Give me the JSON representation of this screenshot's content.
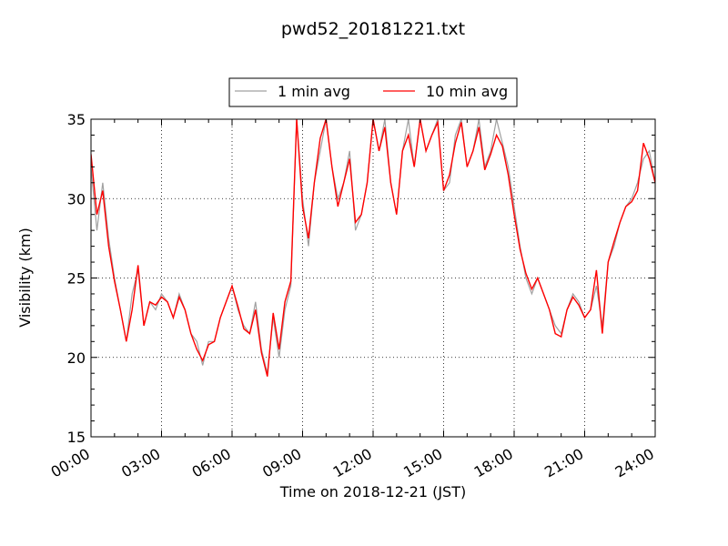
{
  "chart_data": {
    "type": "line",
    "title": "pwd52_20181221.txt",
    "xlabel": "Time on 2018-12-21 (JST)",
    "ylabel": "Visibility (km)",
    "xlim": [
      0,
      24
    ],
    "ylim": [
      15,
      35
    ],
    "x_ticks": [
      0,
      3,
      6,
      9,
      12,
      15,
      18,
      21,
      24
    ],
    "x_tick_labels": [
      "00:00",
      "03:00",
      "06:00",
      "09:00",
      "12:00",
      "15:00",
      "18:00",
      "21:00",
      "24:00"
    ],
    "y_ticks": [
      15,
      20,
      25,
      30,
      35
    ],
    "y_tick_labels": [
      "15",
      "20",
      "25",
      "30",
      "35"
    ],
    "grid": true,
    "legend_position": "top-center",
    "series": [
      {
        "name": "1 min avg",
        "color": "#a0a0a0",
        "x_hours": [
          0.0,
          0.25,
          0.5,
          0.75,
          1.0,
          1.25,
          1.5,
          1.75,
          2.0,
          2.25,
          2.5,
          2.75,
          3.0,
          3.25,
          3.5,
          3.75,
          4.0,
          4.25,
          4.5,
          4.75,
          5.0,
          5.25,
          5.5,
          5.75,
          6.0,
          6.25,
          6.5,
          6.75,
          7.0,
          7.25,
          7.5,
          7.75,
          8.0,
          8.25,
          8.5,
          8.75,
          9.0,
          9.25,
          9.5,
          9.75,
          10.0,
          10.25,
          10.5,
          10.75,
          11.0,
          11.25,
          11.5,
          11.75,
          12.0,
          12.25,
          12.5,
          12.75,
          13.0,
          13.25,
          13.5,
          13.75,
          14.0,
          14.25,
          14.5,
          14.75,
          15.0,
          15.25,
          15.5,
          15.75,
          16.0,
          16.25,
          16.5,
          16.75,
          17.0,
          17.25,
          17.5,
          17.75,
          18.0,
          18.25,
          18.5,
          18.75,
          19.0,
          19.25,
          19.5,
          19.75,
          20.0,
          20.25,
          20.5,
          20.75,
          21.0,
          21.25,
          21.5,
          21.75,
          22.0,
          22.25,
          22.5,
          22.75,
          23.0,
          23.25,
          23.5,
          23.75,
          24.0
        ],
        "values_km": [
          32.0,
          28.0,
          31.0,
          27.5,
          25.0,
          23.0,
          21.0,
          24.0,
          25.5,
          22.0,
          23.5,
          23.0,
          24.0,
          23.5,
          22.5,
          24.0,
          23.0,
          21.5,
          21.0,
          19.5,
          21.0,
          21.0,
          22.5,
          23.5,
          24.5,
          23.0,
          22.0,
          21.5,
          23.5,
          20.5,
          19.0,
          22.5,
          20.0,
          23.0,
          24.5,
          35.0,
          30.0,
          27.0,
          31.0,
          33.0,
          35.0,
          32.0,
          30.0,
          31.0,
          33.0,
          28.0,
          29.0,
          31.0,
          35.0,
          33.0,
          35.0,
          31.0,
          29.0,
          33.0,
          35.0,
          32.0,
          35.0,
          33.0,
          34.0,
          35.0,
          30.5,
          31.0,
          34.0,
          35.0,
          32.0,
          33.0,
          35.0,
          32.0,
          33.0,
          35.0,
          33.5,
          32.0,
          29.5,
          27.0,
          25.0,
          24.0,
          25.0,
          24.0,
          23.0,
          22.0,
          21.5,
          23.0,
          24.0,
          23.5,
          22.5,
          23.0,
          24.5,
          22.0,
          26.0,
          27.0,
          28.5,
          29.5,
          30.0,
          31.0,
          32.5,
          33.0,
          31.0
        ]
      },
      {
        "name": "10 min avg",
        "color": "#ff0000",
        "x_hours": [
          0.0,
          0.25,
          0.5,
          0.75,
          1.0,
          1.25,
          1.5,
          1.75,
          2.0,
          2.25,
          2.5,
          2.75,
          3.0,
          3.25,
          3.5,
          3.75,
          4.0,
          4.25,
          4.5,
          4.75,
          5.0,
          5.25,
          5.5,
          5.75,
          6.0,
          6.25,
          6.5,
          6.75,
          7.0,
          7.25,
          7.5,
          7.75,
          8.0,
          8.25,
          8.5,
          8.75,
          9.0,
          9.25,
          9.5,
          9.75,
          10.0,
          10.25,
          10.5,
          10.75,
          11.0,
          11.25,
          11.5,
          11.75,
          12.0,
          12.25,
          12.5,
          12.75,
          13.0,
          13.25,
          13.5,
          13.75,
          14.0,
          14.25,
          14.5,
          14.75,
          15.0,
          15.25,
          15.5,
          15.75,
          16.0,
          16.25,
          16.5,
          16.75,
          17.0,
          17.25,
          17.5,
          17.75,
          18.0,
          18.25,
          18.5,
          18.75,
          19.0,
          19.25,
          19.5,
          19.75,
          20.0,
          20.25,
          20.5,
          20.75,
          21.0,
          21.25,
          21.5,
          21.75,
          22.0,
          22.25,
          22.5,
          22.75,
          23.0,
          23.25,
          23.5,
          23.75,
          24.0
        ],
        "values_km": [
          32.8,
          29.0,
          30.5,
          27.0,
          24.8,
          23.0,
          21.0,
          23.0,
          25.8,
          22.0,
          23.5,
          23.3,
          23.8,
          23.5,
          22.5,
          23.8,
          23.0,
          21.5,
          20.5,
          19.8,
          20.8,
          21.0,
          22.5,
          23.5,
          24.5,
          23.2,
          21.8,
          21.5,
          23.0,
          20.3,
          18.8,
          22.8,
          20.5,
          23.5,
          24.8,
          35.0,
          29.5,
          27.5,
          31.0,
          33.8,
          35.0,
          32.0,
          29.5,
          31.0,
          32.5,
          28.5,
          29.0,
          31.0,
          35.0,
          33.0,
          34.5,
          31.0,
          29.0,
          33.0,
          34.0,
          32.0,
          35.0,
          33.0,
          34.0,
          34.8,
          30.5,
          31.5,
          33.5,
          34.8,
          32.0,
          33.0,
          34.5,
          31.8,
          32.8,
          34.0,
          33.3,
          31.5,
          29.0,
          26.8,
          25.3,
          24.3,
          25.0,
          24.0,
          23.0,
          21.5,
          21.3,
          23.0,
          23.8,
          23.3,
          22.5,
          23.0,
          25.5,
          21.5,
          26.0,
          27.3,
          28.5,
          29.5,
          29.8,
          30.5,
          33.5,
          32.5,
          31.0
        ]
      }
    ]
  }
}
